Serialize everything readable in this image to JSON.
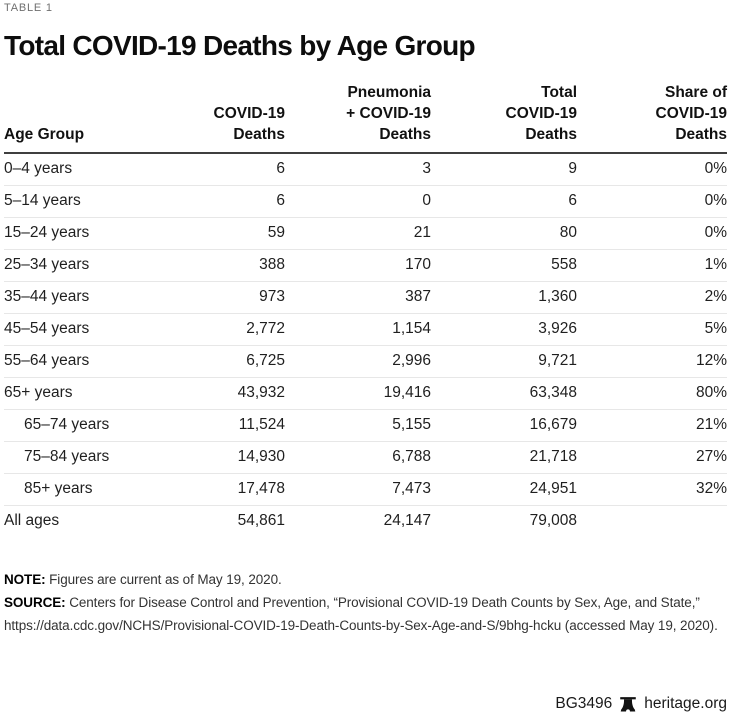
{
  "page": {
    "kicker": "TABLE 1",
    "title": "Total COVID-19 Deaths by Age Group"
  },
  "table": {
    "columns": [
      {
        "label": "Age Group",
        "align": "left"
      },
      {
        "label": "COVID-19\nDeaths",
        "align": "right"
      },
      {
        "label": "Pneumonia\n+ COVID-19\nDeaths",
        "align": "right"
      },
      {
        "label": "Total\nCOVID-19\nDeaths",
        "align": "right"
      },
      {
        "label": "Share of\nCOVID-19\nDeaths",
        "align": "right"
      }
    ],
    "rows": [
      {
        "age_group": "0–4 years",
        "covid_deaths": "6",
        "pneumonia_covid_deaths": "3",
        "total_deaths": "9",
        "share": "0%",
        "indent": false
      },
      {
        "age_group": "5–14 years",
        "covid_deaths": "6",
        "pneumonia_covid_deaths": "0",
        "total_deaths": "6",
        "share": "0%",
        "indent": false
      },
      {
        "age_group": "15–24 years",
        "covid_deaths": "59",
        "pneumonia_covid_deaths": "21",
        "total_deaths": "80",
        "share": "0%",
        "indent": false
      },
      {
        "age_group": "25–34 years",
        "covid_deaths": "388",
        "pneumonia_covid_deaths": "170",
        "total_deaths": "558",
        "share": "1%",
        "indent": false
      },
      {
        "age_group": "35–44 years",
        "covid_deaths": "973",
        "pneumonia_covid_deaths": "387",
        "total_deaths": "1,360",
        "share": "2%",
        "indent": false
      },
      {
        "age_group": "45–54 years",
        "covid_deaths": "2,772",
        "pneumonia_covid_deaths": "1,154",
        "total_deaths": "3,926",
        "share": "5%",
        "indent": false
      },
      {
        "age_group": "55–64 years",
        "covid_deaths": "6,725",
        "pneumonia_covid_deaths": "2,996",
        "total_deaths": "9,721",
        "share": "12%",
        "indent": false
      },
      {
        "age_group": "65+ years",
        "covid_deaths": "43,932",
        "pneumonia_covid_deaths": "19,416",
        "total_deaths": "63,348",
        "share": "80%",
        "indent": false
      },
      {
        "age_group": "65–74 years",
        "covid_deaths": "11,524",
        "pneumonia_covid_deaths": "5,155",
        "total_deaths": "16,679",
        "share": "21%",
        "indent": true
      },
      {
        "age_group": "75–84 years",
        "covid_deaths": "14,930",
        "pneumonia_covid_deaths": "6,788",
        "total_deaths": "21,718",
        "share": "27%",
        "indent": true
      },
      {
        "age_group": "85+ years",
        "covid_deaths": "17,478",
        "pneumonia_covid_deaths": "7,473",
        "total_deaths": "24,951",
        "share": "32%",
        "indent": true
      },
      {
        "age_group": "All ages",
        "covid_deaths": "54,861",
        "pneumonia_covid_deaths": "24,147",
        "total_deaths": "79,008",
        "share": "",
        "indent": false
      }
    ]
  },
  "chart_data": {
    "type": "table",
    "title": "Total COVID-19 Deaths by Age Group",
    "kicker": "TABLE 1",
    "columns": [
      "Age Group",
      "COVID-19 Deaths",
      "Pneumonia + COVID-19 Deaths",
      "Total COVID-19 Deaths",
      "Share of COVID-19 Deaths"
    ],
    "rows": [
      [
        "0–4 years",
        6,
        3,
        9,
        "0%"
      ],
      [
        "5–14 years",
        6,
        0,
        6,
        "0%"
      ],
      [
        "15–24 years",
        59,
        21,
        80,
        "0%"
      ],
      [
        "25–34 years",
        388,
        170,
        558,
        "1%"
      ],
      [
        "35–44 years",
        973,
        387,
        1360,
        "2%"
      ],
      [
        "45–54 years",
        2772,
        1154,
        3926,
        "5%"
      ],
      [
        "55–64 years",
        6725,
        2996,
        9721,
        "12%"
      ],
      [
        "65+ years",
        43932,
        19416,
        63348,
        "80%"
      ],
      [
        "65–74 years",
        11524,
        5155,
        16679,
        "21%"
      ],
      [
        "75–84 years",
        14930,
        6788,
        21718,
        "27%"
      ],
      [
        "85+ years",
        17478,
        7473,
        24951,
        "32%"
      ],
      [
        "All ages",
        54861,
        24147,
        79008,
        null
      ]
    ],
    "layout_hints": {
      "subrows_of_65_plus": [
        "65–74 years",
        "75–84 years",
        "85+ years"
      ],
      "numeric_columns_right_aligned": true,
      "header_rule": "dark",
      "row_rules": "light"
    }
  },
  "notes": {
    "note_label": "NOTE:",
    "note_text": "Figures are current as of May 19, 2020.",
    "source_label": "SOURCE:",
    "source_text": "Centers for Disease Control and Prevention, “Provisional COVID-19 Death Counts by Sex, Age, and State,” https://data.cdc.gov/NCHS/Provisional-COVID-19-Death-Counts-by-Sex-Age-and-S/9bhg-hcku (accessed May 19, 2020)."
  },
  "footer": {
    "doc_id": "BG3496",
    "site": "heritage.org",
    "logo_icon": "liberty-bell-icon"
  },
  "colors": {
    "text": "#1a1a1a",
    "kicker_gray": "#6f6f6f",
    "header_rule": "#3f3f3f",
    "row_rule": "#e7e7e7",
    "background": "#ffffff"
  }
}
